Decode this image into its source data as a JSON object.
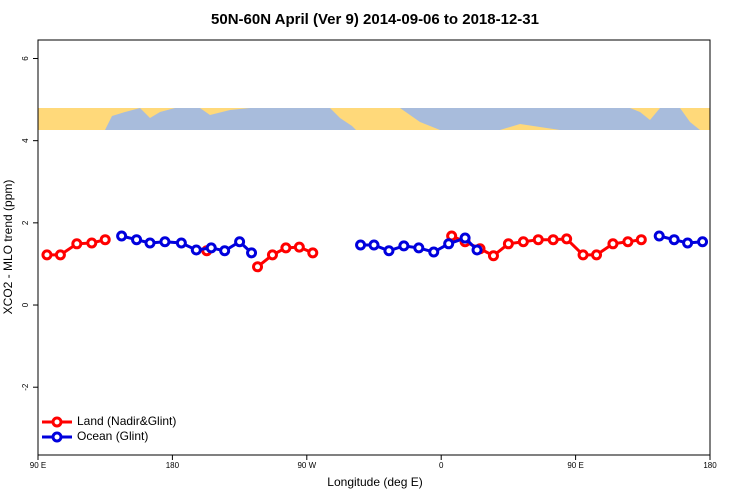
{
  "chart_data": {
    "type": "line",
    "title": "50N-60N April (Ver 9)   2014-09-06 to 2018-12-31",
    "x_label": "Longitude (deg E)",
    "y_label": "XCO2 - MLO trend (ppm)",
    "xlim": [
      90,
      540
    ],
    "xticks": [
      {
        "value": 90,
        "label": "90 E"
      },
      180,
      {
        "value": 270,
        "label": "90 W"
      },
      {
        "value": 360,
        "label": "0"
      },
      {
        "value": 450,
        "label": "90 E"
      },
      {
        "value": 540,
        "label": "180"
      }
    ],
    "ylim": [
      -3.65,
      6.45
    ],
    "yticks": [
      -2,
      0,
      2,
      4,
      6
    ],
    "legend": "bottom-left",
    "series": [
      {
        "name": "Land (Nadir&Glint)",
        "color": "#ff0000",
        "x": [
          96,
          105,
          116,
          126,
          135,
          null,
          203,
          null,
          237,
          247,
          256,
          265,
          274,
          null,
          367,
          376,
          386,
          395,
          405,
          415,
          425,
          435,
          444,
          455,
          464,
          475,
          485,
          494
        ],
        "values": [
          1.22,
          1.22,
          1.49,
          1.51,
          1.59,
          null,
          1.32,
          null,
          0.93,
          1.22,
          1.39,
          1.41,
          1.27,
          null,
          1.68,
          1.54,
          1.37,
          1.2,
          1.49,
          1.54,
          1.59,
          1.59,
          1.61,
          1.22,
          1.22,
          1.49,
          1.54,
          1.59
        ]
      },
      {
        "name": "Ocean (Glint)",
        "color": "#0000dd",
        "x": [
          146,
          156,
          165,
          175,
          186,
          196,
          206,
          215,
          225,
          233,
          null,
          306,
          315,
          325,
          335,
          345,
          355,
          365,
          376,
          384,
          null,
          506,
          516,
          525,
          535
        ],
        "values": [
          1.68,
          1.59,
          1.51,
          1.54,
          1.51,
          1.34,
          1.39,
          1.32,
          1.54,
          1.27,
          null,
          1.46,
          1.46,
          1.32,
          1.44,
          1.39,
          1.29,
          1.49,
          1.63,
          1.34,
          null,
          1.68,
          1.59,
          1.51,
          1.54
        ]
      }
    ]
  }
}
